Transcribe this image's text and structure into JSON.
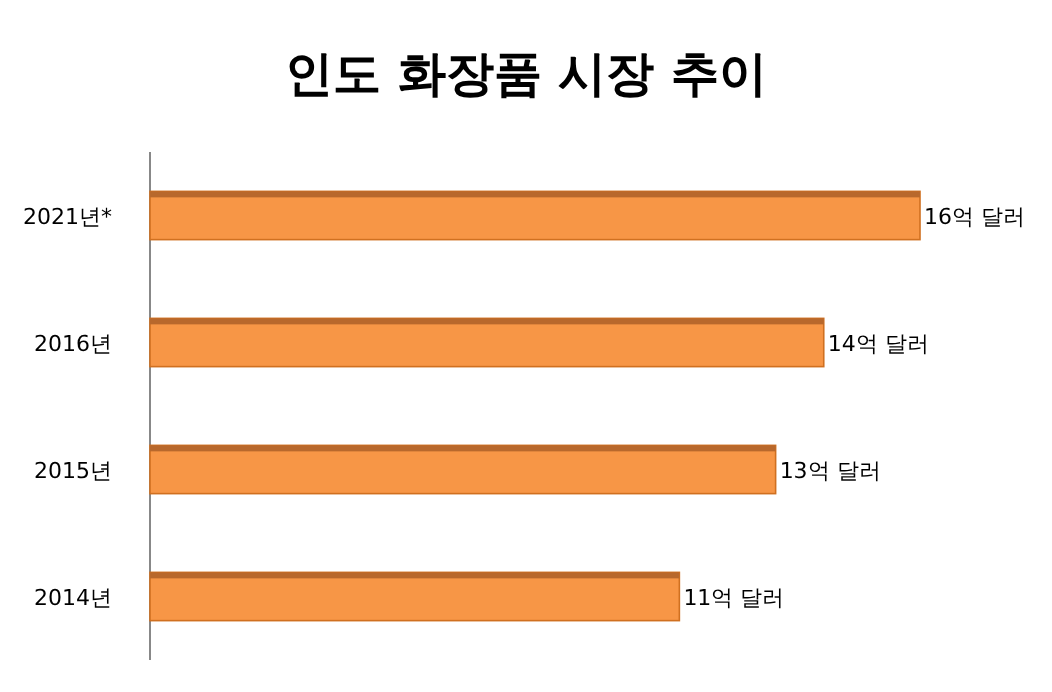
{
  "chart_data": {
    "type": "bar",
    "title": "인도 화장품 시장 추이",
    "orientation": "horizontal",
    "categories": [
      "2021년*",
      "2016년",
      "2015년",
      "2014년"
    ],
    "values": [
      16,
      14,
      13,
      11
    ],
    "value_labels": [
      "16억 달러",
      "14억 달러",
      "13억 달러",
      "11억 달러"
    ],
    "color": "#f79646"
  }
}
